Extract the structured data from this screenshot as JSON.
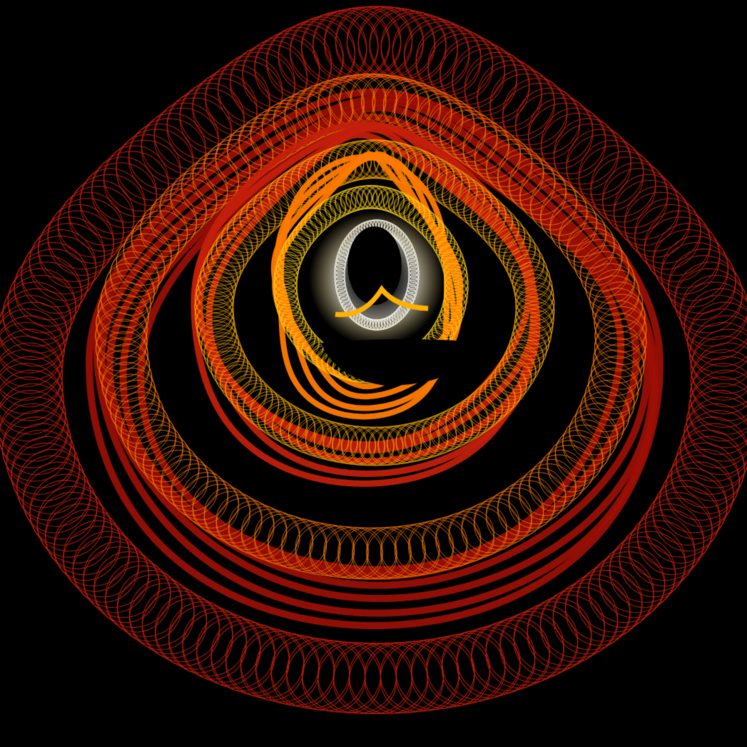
{
  "palette": {
    "background": "#000000",
    "outer_red": "#c4200c",
    "deep_red": "#9e1005",
    "orange": "#ff7a00",
    "amber": "#ffb000",
    "gold": "#ffd21a",
    "pale_yellow": "#fff2a0",
    "white": "#ffffff"
  },
  "rings": [
    {
      "name": "outer-lattice",
      "color_key": "outer_red",
      "style": "lattice"
    },
    {
      "name": "deep-red-band",
      "color_key": "deep_red",
      "style": "band"
    },
    {
      "name": "mid-lattice",
      "color_key": "orange",
      "style": "lattice"
    },
    {
      "name": "red-band",
      "color_key": "outer_red",
      "style": "band"
    },
    {
      "name": "amber-lattice",
      "color_key": "amber",
      "style": "lattice"
    },
    {
      "name": "orange-band",
      "color_key": "orange",
      "style": "band"
    },
    {
      "name": "gold-lattice",
      "color_key": "gold",
      "style": "lattice"
    },
    {
      "name": "inner-white",
      "color_key": "white",
      "style": "lattice"
    }
  ]
}
